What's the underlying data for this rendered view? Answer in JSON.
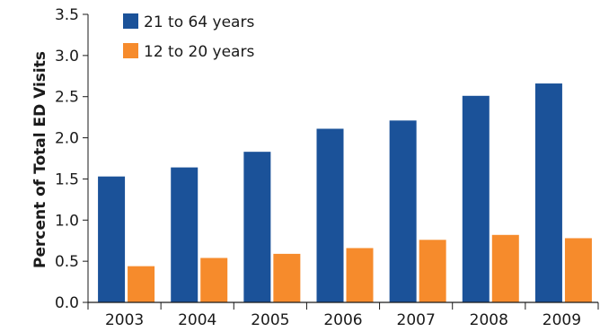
{
  "chart_data": {
    "type": "bar",
    "title": "",
    "xlabel": "",
    "ylabel": "Percent of Total ED Visits",
    "ylim": [
      0,
      3.5
    ],
    "yticks": [
      "0.0",
      "0.5",
      "1.0",
      "1.5",
      "2.0",
      "2.5",
      "3.0",
      "3.5"
    ],
    "categories": [
      "2003",
      "2004",
      "2005",
      "2006",
      "2007",
      "2008",
      "2009"
    ],
    "grid": false,
    "legend_position": "top-left",
    "series": [
      {
        "name": "21 to 64 years",
        "color": "#1b5299",
        "values": [
          1.53,
          1.64,
          1.83,
          2.11,
          2.21,
          2.51,
          2.66
        ]
      },
      {
        "name": "12 to 20 years",
        "color": "#f68b2c",
        "values": [
          0.44,
          0.54,
          0.59,
          0.66,
          0.76,
          0.82,
          0.78
        ]
      }
    ]
  }
}
